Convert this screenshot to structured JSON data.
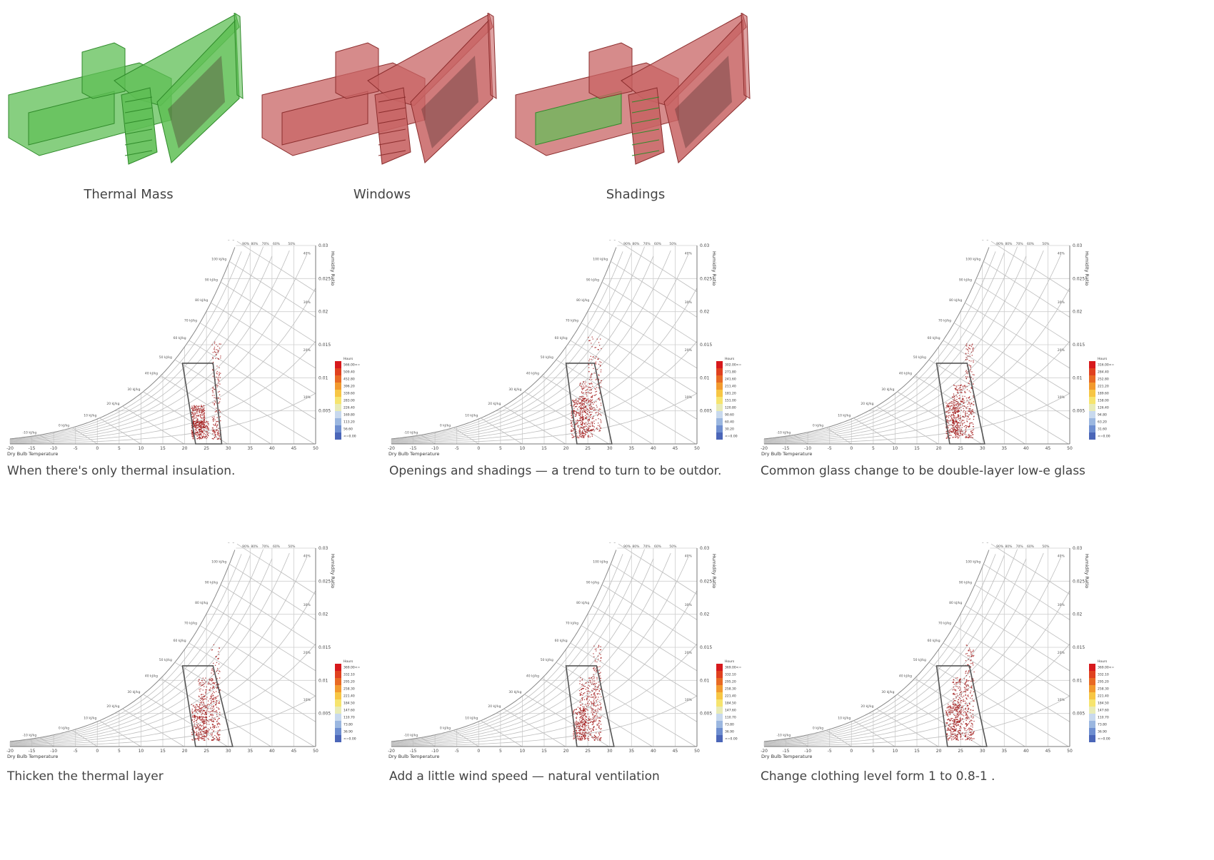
{
  "models": [
    {
      "caption": "Thermal Mass",
      "scheme": "green",
      "color": "#52b34c"
    },
    {
      "caption": "Windows",
      "scheme": "red",
      "color": "#c45b5b"
    },
    {
      "caption": "Shadings",
      "scheme": "mixed",
      "color": "#c45b5b"
    }
  ],
  "chart_common": {
    "type": "scatter",
    "xlabel": "Dry Bulb Temperature",
    "ylabel": "Humidity Ratio",
    "xlim": [
      -20,
      50
    ],
    "ylim": [
      0,
      0.03
    ],
    "x_ticks": [
      "-20",
      "-15",
      "-10",
      "-5",
      "0",
      "5",
      "10",
      "15",
      "20",
      "25",
      "30",
      "35",
      "40",
      "45",
      "50"
    ],
    "y_ticks": [
      "0.005",
      "0.01",
      "0.015",
      "0.02",
      "0.025",
      "0.03"
    ],
    "enthalpy_labels": [
      "-10 kJ/kg",
      "0 kJ/kg",
      "10 kJ/kg",
      "20 kJ/kg",
      "30 kJ/kg",
      "40 kJ/kg",
      "50 kJ/kg",
      "60 kJ/kg",
      "70 kJ/kg",
      "80 kJ/kg",
      "90 kJ/kg",
      "100 kJ/kg",
      "110 kJ/kg"
    ],
    "rh_labels": [
      "10%",
      "20%",
      "30%",
      "40%",
      "50%",
      "60%",
      "70%",
      "80%",
      "90%"
    ],
    "legend_title": "Hours",
    "point_color": "#a01818"
  },
  "chart_data": [
    {
      "type": "scatter",
      "caption": "When there's only thermal insulation.",
      "legend": [
        "566.00<=",
        "509.40",
        "452.80",
        "396.20",
        "339.60",
        "283.00",
        "226.40",
        "169.80",
        "113.20",
        "56.60",
        "<=0.00"
      ],
      "comfort_polygon": [
        [
          19.5,
          0.0122
        ],
        [
          26.5,
          0.0122
        ],
        [
          28.5,
          0
        ],
        [
          22.5,
          0
        ]
      ],
      "clusters": [
        {
          "x": [
            21.5,
            25.5
          ],
          "y": [
            0.0008,
            0.0035
          ]
        },
        {
          "x": [
            26.2,
            28.2
          ],
          "y": [
            0.0008,
            0.0155
          ]
        },
        {
          "x": [
            21.5,
            24.5
          ],
          "y": [
            0.0025,
            0.006
          ]
        }
      ]
    },
    {
      "type": "scatter",
      "caption": "Openings and shadings — a trend to turn to be outdor.",
      "legend": [
        "302.00<=",
        "271.80",
        "241.60",
        "211.40",
        "181.20",
        "151.00",
        "120.80",
        "90.60",
        "60.40",
        "30.20",
        "<=0.00"
      ],
      "comfort_polygon": [
        [
          20,
          0.0122
        ],
        [
          26.5,
          0.0122
        ],
        [
          30.5,
          0
        ],
        [
          22.5,
          0
        ]
      ],
      "clusters": [
        {
          "x": [
            21,
            24.5
          ],
          "y": [
            0.001,
            0.007
          ]
        },
        {
          "x": [
            25,
            28
          ],
          "y": [
            0.002,
            0.0165
          ]
        },
        {
          "x": [
            23,
            26
          ],
          "y": [
            0.001,
            0.0095
          ]
        }
      ]
    },
    {
      "type": "scatter",
      "caption": "Common glass change to be double-layer low-e glass",
      "legend": [
        "316.00<=",
        "284.40",
        "252.80",
        "221.20",
        "189.60",
        "158.00",
        "126.40",
        "94.80",
        "63.20",
        "31.60",
        "<=0.00"
      ],
      "comfort_polygon": [
        [
          19.5,
          0.0122
        ],
        [
          26.5,
          0.0122
        ],
        [
          30.5,
          0
        ],
        [
          22.5,
          0
        ]
      ],
      "clusters": [
        {
          "x": [
            21.5,
            24.5
          ],
          "y": [
            0.0008,
            0.0065
          ]
        },
        {
          "x": [
            26,
            28
          ],
          "y": [
            0.001,
            0.0155
          ]
        },
        {
          "x": [
            23,
            26
          ],
          "y": [
            0.001,
            0.009
          ]
        }
      ]
    },
    {
      "type": "scatter",
      "caption": "Thicken the thermal layer",
      "legend": [
        "369.00<=",
        "332.10",
        "295.20",
        "258.30",
        "221.40",
        "184.50",
        "147.60",
        "110.70",
        "73.80",
        "36.90",
        "<=0.00"
      ],
      "comfort_polygon": [
        [
          19.5,
          0.0122
        ],
        [
          26.5,
          0.0122
        ],
        [
          31,
          0
        ],
        [
          22.5,
          0
        ]
      ],
      "clusters": [
        {
          "x": [
            21.5,
            25
          ],
          "y": [
            0.001,
            0.0065
          ]
        },
        {
          "x": [
            26,
            28
          ],
          "y": [
            0.001,
            0.0155
          ]
        },
        {
          "x": [
            23,
            26.5
          ],
          "y": [
            0.001,
            0.0105
          ]
        }
      ]
    },
    {
      "type": "scatter",
      "caption": "Add a little wind speed — natural ventilation",
      "legend": [
        "369.00<=",
        "332.10",
        "295.20",
        "258.30",
        "221.40",
        "184.50",
        "147.60",
        "110.70",
        "73.80",
        "36.90",
        "<=0.00"
      ],
      "comfort_polygon": [
        [
          20,
          0.0122
        ],
        [
          27,
          0.0122
        ],
        [
          31,
          0
        ],
        [
          22.5,
          0
        ]
      ],
      "clusters": [
        {
          "x": [
            21.5,
            24.5
          ],
          "y": [
            0.001,
            0.006
          ]
        },
        {
          "x": [
            26,
            28
          ],
          "y": [
            0.001,
            0.0155
          ]
        },
        {
          "x": [
            23,
            26.5
          ],
          "y": [
            0.001,
            0.0105
          ]
        }
      ]
    },
    {
      "type": "scatter",
      "caption": "Change clothing level form 1 to 0.8-1 .",
      "legend": [
        "369.00<=",
        "332.10",
        "295.20",
        "258.30",
        "221.40",
        "184.50",
        "147.60",
        "110.70",
        "73.80",
        "36.90",
        "<=0.00"
      ],
      "comfort_polygon": [
        [
          19.5,
          0.0122
        ],
        [
          27,
          0.0122
        ],
        [
          31,
          0
        ],
        [
          22,
          0
        ]
      ],
      "clusters": [
        {
          "x": [
            21.5,
            25
          ],
          "y": [
            0.001,
            0.0065
          ]
        },
        {
          "x": [
            26,
            28
          ],
          "y": [
            0.001,
            0.0155
          ]
        },
        {
          "x": [
            23,
            26.5
          ],
          "y": [
            0.001,
            0.0105
          ]
        }
      ]
    }
  ]
}
